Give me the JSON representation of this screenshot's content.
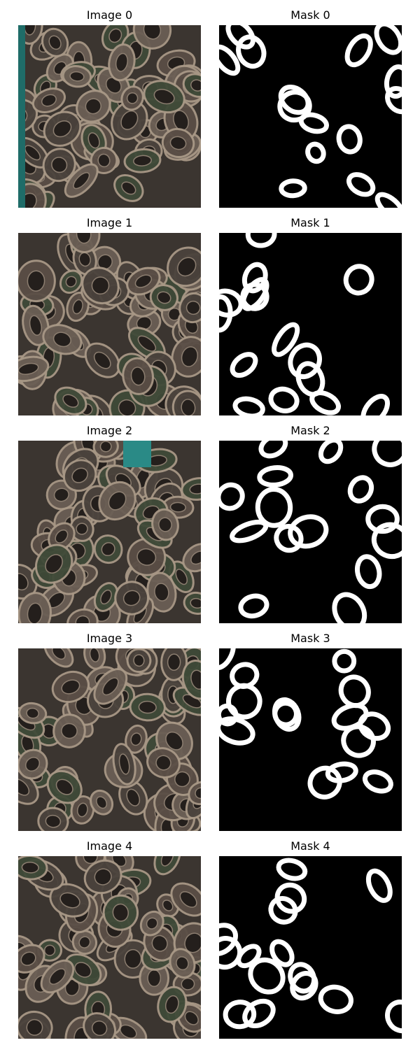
{
  "rows": [
    {
      "image_title": "Image 0",
      "mask_title": "Mask 0"
    },
    {
      "image_title": "Image 1",
      "mask_title": "Mask 1"
    },
    {
      "image_title": "Image 2",
      "mask_title": "Mask 2"
    },
    {
      "image_title": "Image 3",
      "mask_title": "Mask 3"
    },
    {
      "image_title": "Image 4",
      "mask_title": "Mask 4"
    }
  ]
}
